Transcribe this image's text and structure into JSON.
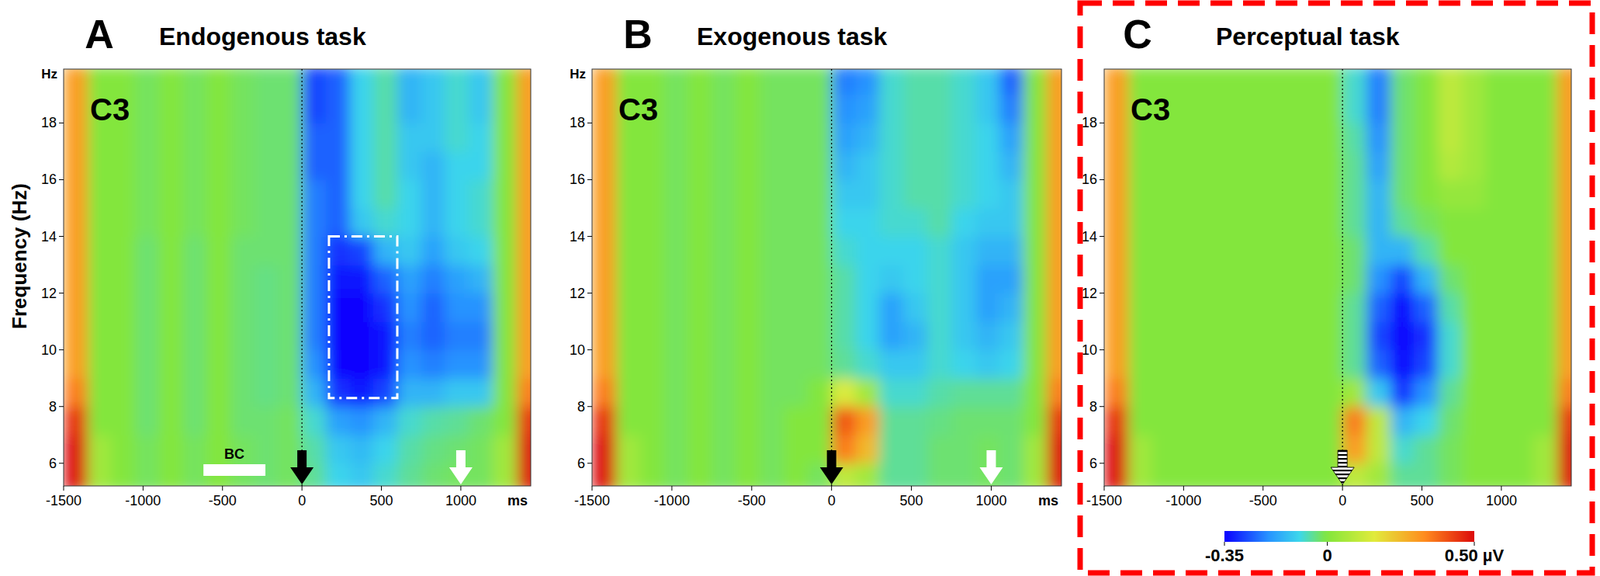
{
  "chart_data": [
    {
      "type": "heatmap",
      "panel_label": "A",
      "title": "Endogenous task",
      "channel_label": "C3",
      "y_label": "Frequency (Hz)",
      "y_unit_label": "Hz",
      "x_unit_label": "ms",
      "x": [
        -1425,
        -1275,
        -1125,
        -975,
        -825,
        -675,
        -525,
        -375,
        -225,
        -75,
        75,
        225,
        375,
        525,
        675,
        825,
        975,
        1125,
        1275,
        1425
      ],
      "y": [
        5.5,
        6.5,
        7.5,
        8.5,
        9.5,
        10.5,
        11.5,
        12.5,
        13.5,
        14.5,
        15.5,
        16.5,
        17.5,
        18.5,
        19.5
      ],
      "values": [
        [
          0.5,
          0.05,
          0,
          -0.02,
          0,
          -0.02,
          0,
          -0.02,
          -0.03,
          -0.02,
          -0.05,
          -0.1,
          -0.12,
          -0.08,
          -0.05,
          -0.03,
          -0.02,
          -0.02,
          0.05,
          0.5
        ],
        [
          0.5,
          0.05,
          0,
          -0.02,
          0,
          -0.02,
          0,
          -0.02,
          -0.03,
          -0.02,
          -0.06,
          -0.12,
          -0.14,
          -0.1,
          -0.06,
          -0.04,
          -0.03,
          -0.02,
          0.05,
          0.5
        ],
        [
          0.45,
          0,
          0,
          -0.03,
          0,
          -0.03,
          0,
          -0.03,
          -0.03,
          -0.02,
          -0.08,
          -0.18,
          -0.2,
          -0.15,
          -0.08,
          -0.06,
          -0.05,
          -0.03,
          0,
          0.45
        ],
        [
          0.35,
          0,
          0,
          -0.03,
          0,
          -0.03,
          0,
          -0.03,
          -0.04,
          -0.03,
          -0.15,
          -0.3,
          -0.33,
          -0.28,
          -0.15,
          -0.15,
          -0.12,
          -0.12,
          0,
          0.35
        ],
        [
          0.3,
          0,
          0,
          -0.03,
          0,
          -0.03,
          0,
          -0.03,
          -0.04,
          -0.03,
          -0.2,
          -0.35,
          -0.35,
          -0.33,
          -0.2,
          -0.22,
          -0.2,
          -0.2,
          0,
          0.3
        ],
        [
          0.3,
          0,
          0,
          -0.03,
          0,
          -0.03,
          0,
          -0.03,
          -0.04,
          -0.03,
          -0.22,
          -0.35,
          -0.35,
          -0.33,
          -0.22,
          -0.25,
          -0.22,
          -0.22,
          0,
          0.3
        ],
        [
          0.3,
          0,
          0,
          -0.03,
          0,
          -0.03,
          0,
          -0.03,
          -0.04,
          -0.03,
          -0.22,
          -0.35,
          -0.35,
          -0.3,
          -0.2,
          -0.25,
          -0.2,
          -0.2,
          0,
          0.3
        ],
        [
          0.3,
          0,
          0,
          -0.03,
          0,
          -0.03,
          0,
          -0.03,
          -0.04,
          -0.03,
          -0.22,
          -0.33,
          -0.33,
          -0.25,
          -0.18,
          -0.22,
          -0.18,
          -0.15,
          0,
          0.3
        ],
        [
          0.3,
          0,
          0,
          -0.03,
          0,
          -0.03,
          0,
          -0.03,
          -0.03,
          -0.03,
          -0.22,
          -0.3,
          -0.28,
          -0.15,
          -0.12,
          -0.18,
          -0.12,
          -0.1,
          0,
          0.3
        ],
        [
          0.3,
          0,
          0,
          -0.02,
          0,
          -0.02,
          0,
          -0.02,
          -0.03,
          -0.03,
          -0.22,
          -0.25,
          -0.12,
          -0.08,
          -0.1,
          -0.15,
          -0.1,
          -0.08,
          0,
          0.3
        ],
        [
          0.3,
          0,
          0,
          -0.02,
          0,
          -0.02,
          0,
          -0.02,
          -0.03,
          -0.03,
          -0.22,
          -0.25,
          -0.1,
          -0.06,
          -0.1,
          -0.15,
          -0.1,
          -0.08,
          0,
          0.3
        ],
        [
          0.3,
          0,
          0,
          -0.02,
          0,
          -0.02,
          0,
          -0.02,
          -0.03,
          -0.03,
          -0.25,
          -0.25,
          -0.1,
          -0.06,
          -0.12,
          -0.15,
          -0.1,
          -0.1,
          0,
          0.3
        ],
        [
          0.3,
          0,
          0,
          -0.02,
          0,
          -0.02,
          0,
          -0.02,
          -0.03,
          -0.03,
          -0.25,
          -0.25,
          -0.1,
          -0.06,
          -0.12,
          -0.12,
          -0.08,
          -0.1,
          0,
          0.3
        ],
        [
          0.3,
          0,
          0,
          -0.02,
          0,
          -0.02,
          0,
          -0.02,
          -0.03,
          -0.03,
          -0.28,
          -0.25,
          -0.1,
          -0.06,
          -0.15,
          -0.12,
          -0.08,
          -0.12,
          0,
          0.3
        ],
        [
          0.3,
          0,
          0,
          -0.02,
          0,
          -0.02,
          0,
          -0.02,
          -0.03,
          -0.03,
          -0.28,
          -0.25,
          -0.1,
          -0.06,
          -0.15,
          -0.12,
          -0.08,
          -0.12,
          0,
          0.3
        ]
      ],
      "xlim": [
        -1500,
        1440
      ],
      "ylim": [
        5.2,
        19.9
      ],
      "xticks": [
        -1500,
        -1000,
        -500,
        0,
        500,
        1000
      ],
      "yticks": [
        6,
        8,
        10,
        12,
        14,
        16,
        18
      ],
      "color_range": [
        -0.35,
        0.5
      ],
      "arrows": [
        {
          "x": 0,
          "color": "#000000"
        },
        {
          "x": 1000,
          "color": "#ffffff"
        }
      ],
      "baseline": {
        "label": "BC",
        "x": [
          -620,
          -230
        ]
      },
      "highlight": {
        "x": [
          170,
          600
        ],
        "y": [
          8.3,
          14
        ]
      }
    },
    {
      "type": "heatmap",
      "panel_label": "B",
      "title": "Exogenous task",
      "channel_label": "C3",
      "y_unit_label": "Hz",
      "x_unit_label": "ms",
      "x": [
        -1425,
        -1275,
        -1125,
        -975,
        -825,
        -675,
        -525,
        -375,
        -225,
        -75,
        75,
        225,
        375,
        525,
        675,
        825,
        975,
        1125,
        1275,
        1425
      ],
      "y": [
        5.5,
        6.5,
        7.5,
        8.5,
        9.5,
        10.5,
        11.5,
        12.5,
        13.5,
        14.5,
        15.5,
        16.5,
        17.5,
        18.5,
        19.5
      ],
      "values": [
        [
          0.5,
          0.05,
          0,
          -0.02,
          0,
          -0.02,
          0,
          -0.02,
          0,
          -0.02,
          0.1,
          0.05,
          -0.05,
          -0.05,
          -0.03,
          -0.03,
          -0.02,
          -0.03,
          0.05,
          0.5
        ],
        [
          0.5,
          0.05,
          0,
          -0.02,
          0,
          -0.02,
          0,
          -0.02,
          0,
          0,
          0.35,
          0.25,
          -0.05,
          -0.05,
          -0.03,
          -0.03,
          -0.02,
          -0.03,
          0.05,
          0.5
        ],
        [
          0.45,
          0,
          0,
          -0.02,
          0,
          -0.02,
          0,
          -0.02,
          0,
          0,
          0.4,
          0.3,
          -0.05,
          -0.05,
          -0.04,
          -0.03,
          -0.03,
          -0.03,
          0,
          0.45
        ],
        [
          0.35,
          0,
          0,
          -0.02,
          0,
          -0.02,
          0,
          -0.02,
          -0.02,
          0,
          0.15,
          0.05,
          -0.08,
          -0.08,
          -0.06,
          -0.05,
          -0.05,
          -0.05,
          0,
          0.35
        ],
        [
          0.3,
          0,
          0,
          -0.02,
          0,
          -0.02,
          0,
          -0.02,
          -0.02,
          -0.02,
          -0.05,
          -0.08,
          -0.12,
          -0.12,
          -0.08,
          -0.1,
          -0.12,
          -0.1,
          0,
          0.3
        ],
        [
          0.3,
          0,
          0,
          -0.02,
          0,
          -0.02,
          0,
          -0.02,
          -0.02,
          -0.02,
          -0.06,
          -0.1,
          -0.18,
          -0.15,
          -0.08,
          -0.12,
          -0.15,
          -0.12,
          0,
          0.3
        ],
        [
          0.3,
          0,
          0,
          -0.02,
          0,
          -0.02,
          0,
          -0.02,
          -0.02,
          -0.02,
          -0.06,
          -0.1,
          -0.18,
          -0.12,
          -0.08,
          -0.12,
          -0.18,
          -0.15,
          0,
          0.3
        ],
        [
          0.3,
          0,
          0,
          -0.02,
          0,
          -0.02,
          0,
          -0.02,
          -0.02,
          -0.02,
          -0.06,
          -0.1,
          -0.12,
          -0.1,
          -0.08,
          -0.12,
          -0.18,
          -0.18,
          0,
          0.3
        ],
        [
          0.3,
          0,
          0,
          -0.02,
          0,
          -0.02,
          0,
          -0.02,
          -0.02,
          -0.02,
          -0.08,
          -0.1,
          -0.1,
          -0.1,
          -0.08,
          -0.12,
          -0.15,
          -0.15,
          0,
          0.3
        ],
        [
          0.3,
          0,
          0,
          -0.02,
          0,
          -0.02,
          0,
          -0.02,
          -0.02,
          -0.02,
          -0.1,
          -0.1,
          -0.08,
          -0.08,
          -0.06,
          -0.1,
          -0.12,
          -0.12,
          0,
          0.3
        ],
        [
          0.3,
          0,
          0,
          -0.02,
          0,
          -0.02,
          0,
          -0.02,
          -0.02,
          -0.02,
          -0.12,
          -0.12,
          -0.08,
          -0.06,
          -0.06,
          -0.08,
          -0.1,
          -0.12,
          0,
          0.3
        ],
        [
          0.3,
          0,
          0,
          -0.02,
          0,
          -0.02,
          0,
          -0.02,
          -0.02,
          -0.02,
          -0.15,
          -0.12,
          -0.08,
          -0.06,
          -0.06,
          -0.08,
          -0.1,
          -0.15,
          0,
          0.3
        ],
        [
          0.3,
          0,
          0,
          -0.02,
          0,
          -0.02,
          0,
          -0.02,
          -0.02,
          -0.02,
          -0.18,
          -0.15,
          -0.08,
          -0.06,
          -0.06,
          -0.08,
          -0.1,
          -0.18,
          0,
          0.3
        ],
        [
          0.3,
          0,
          0,
          -0.02,
          0,
          -0.02,
          0,
          -0.02,
          -0.02,
          -0.02,
          -0.2,
          -0.18,
          -0.08,
          -0.06,
          -0.06,
          -0.08,
          -0.12,
          -0.22,
          0,
          0.3
        ],
        [
          0.3,
          0,
          0,
          -0.02,
          0,
          -0.02,
          0,
          -0.02,
          -0.02,
          -0.02,
          -0.22,
          -0.2,
          -0.08,
          -0.06,
          -0.06,
          -0.08,
          -0.12,
          -0.25,
          0,
          0.3
        ]
      ],
      "xlim": [
        -1500,
        1440
      ],
      "ylim": [
        5.2,
        19.9
      ],
      "xticks": [
        -1500,
        -1000,
        -500,
        0,
        500,
        1000
      ],
      "yticks": [
        6,
        8,
        10,
        12,
        14,
        16,
        18
      ],
      "color_range": [
        -0.35,
        0.5
      ],
      "arrows": [
        {
          "x": 0,
          "color": "#000000"
        },
        {
          "x": 1000,
          "color": "#ffffff"
        }
      ]
    },
    {
      "type": "heatmap",
      "panel_label": "C",
      "title": "Perceptual task",
      "channel_label": "C3",
      "x": [
        -1425,
        -1275,
        -1125,
        -975,
        -825,
        -675,
        -525,
        -375,
        -225,
        -75,
        75,
        225,
        375,
        525,
        675,
        825,
        975,
        1125,
        1275,
        1425
      ],
      "y": [
        5.5,
        6.5,
        7.5,
        8.5,
        9.5,
        10.5,
        11.5,
        12.5,
        13.5,
        14.5,
        15.5,
        16.5,
        17.5,
        18.5,
        19.5
      ],
      "values": [
        [
          0.5,
          0.05,
          0,
          0,
          0,
          0,
          0,
          0,
          0,
          0,
          0.1,
          0.05,
          -0.05,
          -0.05,
          -0.02,
          0,
          0,
          0,
          0.05,
          0.5
        ],
        [
          0.5,
          0.05,
          0,
          0,
          0,
          0,
          0,
          0,
          0,
          0,
          0.3,
          0.1,
          -0.08,
          -0.05,
          -0.02,
          0,
          0,
          0,
          0.05,
          0.5
        ],
        [
          0.45,
          0,
          0,
          0,
          0,
          0,
          0,
          0,
          0,
          0,
          0.35,
          0.1,
          -0.15,
          -0.1,
          -0.03,
          0,
          0,
          0,
          0,
          0.45
        ],
        [
          0.35,
          0,
          0,
          0,
          0,
          0,
          0,
          0,
          0,
          0,
          0.05,
          -0.12,
          -0.3,
          -0.2,
          -0.05,
          0,
          0,
          0,
          0,
          0.35
        ],
        [
          0.3,
          0,
          0,
          0,
          0,
          0,
          0,
          0,
          0,
          0,
          -0.05,
          -0.25,
          -0.35,
          -0.28,
          -0.08,
          0,
          0,
          0,
          0,
          0.3
        ],
        [
          0.3,
          0,
          0,
          0,
          0,
          0,
          0,
          0,
          0,
          0,
          -0.05,
          -0.28,
          -0.35,
          -0.3,
          -0.08,
          0,
          0,
          0,
          0,
          0.3
        ],
        [
          0.3,
          0,
          0,
          0,
          0,
          0,
          0,
          0,
          0,
          0,
          -0.05,
          -0.25,
          -0.35,
          -0.25,
          -0.06,
          0,
          0,
          0,
          0,
          0.3
        ],
        [
          0.3,
          0,
          0,
          0,
          0,
          0,
          0,
          0,
          0,
          0,
          -0.03,
          -0.2,
          -0.28,
          -0.15,
          -0.03,
          0,
          0,
          0,
          0,
          0.3
        ],
        [
          0.3,
          0,
          0,
          0,
          0,
          0,
          0,
          0,
          0,
          0,
          -0.03,
          -0.15,
          -0.15,
          -0.06,
          0,
          0,
          0,
          0,
          0,
          0.3
        ],
        [
          0.3,
          0,
          0,
          0,
          0,
          0,
          0,
          0,
          0,
          0,
          -0.05,
          -0.15,
          -0.05,
          -0.02,
          0,
          0,
          0,
          0,
          0,
          0.3
        ],
        [
          0.3,
          0,
          0,
          0,
          0,
          0,
          0,
          0,
          0,
          0,
          -0.05,
          -0.15,
          -0.03,
          0,
          0.03,
          0.03,
          0,
          0,
          0,
          0.3
        ],
        [
          0.3,
          0,
          0,
          0,
          0,
          0,
          0,
          0,
          0,
          0,
          -0.05,
          -0.18,
          -0.03,
          0,
          0.08,
          0.05,
          0,
          0,
          0,
          0.3
        ],
        [
          0.3,
          0,
          0,
          0,
          0,
          0,
          0,
          0,
          0,
          0,
          -0.06,
          -0.2,
          -0.03,
          0,
          0.1,
          0.05,
          0,
          0,
          0,
          0.3
        ],
        [
          0.3,
          0,
          0,
          0,
          0,
          0,
          0,
          0,
          0,
          0,
          -0.08,
          -0.22,
          -0.03,
          0,
          0.1,
          0.05,
          0,
          0,
          0,
          0.3
        ],
        [
          0.3,
          0,
          0,
          0,
          0,
          0,
          0,
          0,
          0,
          0,
          -0.08,
          -0.22,
          -0.03,
          0,
          0.1,
          0.05,
          0,
          0,
          0,
          0.3
        ]
      ],
      "xlim": [
        -1500,
        1440
      ],
      "ylim": [
        5.2,
        19.9
      ],
      "xticks": [
        -1500,
        -1000,
        -500,
        0,
        500,
        1000
      ],
      "yticks": [
        6,
        8,
        10,
        12,
        14,
        16,
        18
      ],
      "color_range": [
        -0.35,
        0.5
      ],
      "color_ticks": [
        {
          "value": -0.35,
          "label": "-0.35"
        },
        0,
        {
          "value": 0.5,
          "label": "0.50 µV"
        }
      ],
      "arrows": [
        {
          "x": 0,
          "color": "#000000",
          "marker": "striped"
        }
      ]
    }
  ]
}
